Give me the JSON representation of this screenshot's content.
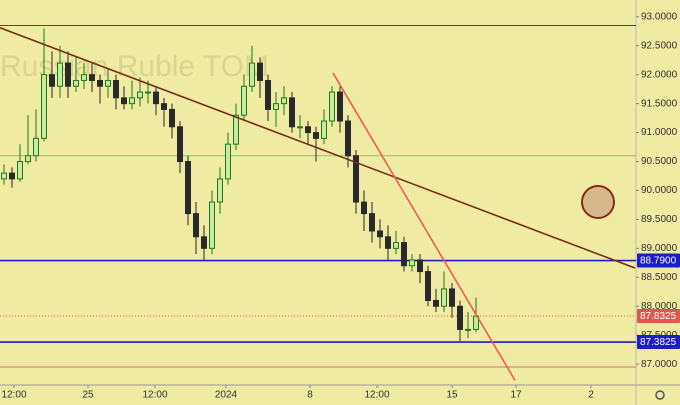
{
  "chart_data": {
    "type": "candlestick",
    "watermark": "Russian Ruble TOM",
    "x": [
      1,
      3,
      5,
      7,
      9,
      11,
      13,
      15,
      17,
      19,
      21,
      23,
      25,
      27,
      29,
      31,
      33,
      35,
      37,
      39,
      41,
      43,
      45,
      47,
      49,
      51,
      53,
      55,
      57,
      59,
      61,
      63,
      65,
      67,
      69,
      71,
      73,
      75,
      77,
      79,
      81,
      83,
      85,
      87,
      89,
      91,
      93,
      95,
      97,
      99,
      101,
      103,
      105,
      107,
      109,
      111,
      113,
      115,
      117,
      119
    ],
    "open": [
      90.2,
      90.3,
      90.2,
      90.5,
      90.6,
      90.9,
      92.0,
      91.8,
      92.2,
      91.8,
      91.9,
      92.0,
      91.9,
      91.8,
      91.9,
      91.6,
      91.5,
      91.6,
      91.7,
      91.7,
      91.5,
      91.4,
      91.1,
      90.5,
      89.6,
      89.2,
      89.0,
      89.8,
      90.2,
      90.8,
      91.3,
      91.8,
      92.2,
      91.9,
      91.4,
      91.5,
      91.6,
      91.1,
      91.1,
      91.0,
      90.9,
      91.2,
      91.7,
      91.2,
      90.6,
      89.8,
      89.6,
      89.3,
      89.2,
      89.0,
      89.1,
      88.7,
      88.8,
      88.6,
      88.1,
      88.0,
      88.3,
      88.0,
      87.6,
      87.6
    ],
    "high": [
      90.45,
      90.4,
      90.8,
      91.3,
      91.4,
      92.8,
      92.4,
      92.5,
      92.4,
      92.3,
      92.2,
      92.2,
      92.0,
      92.1,
      92.0,
      91.8,
      91.9,
      91.95,
      91.9,
      91.8,
      91.6,
      91.5,
      91.2,
      90.6,
      89.8,
      89.4,
      90.0,
      90.4,
      91.0,
      91.5,
      92.0,
      92.5,
      92.3,
      92.0,
      91.7,
      91.8,
      91.7,
      91.3,
      91.2,
      91.1,
      91.4,
      91.8,
      91.8,
      91.3,
      90.7,
      90.0,
      89.8,
      89.5,
      89.4,
      89.3,
      89.2,
      88.9,
      88.9,
      88.7,
      88.3,
      88.6,
      88.4,
      88.1,
      87.9,
      88.15
    ],
    "low": [
      90.1,
      90.05,
      90.15,
      90.45,
      90.5,
      90.85,
      91.6,
      91.6,
      91.6,
      91.7,
      91.75,
      91.7,
      91.5,
      91.6,
      91.4,
      91.4,
      91.4,
      91.45,
      91.5,
      91.3,
      91.1,
      90.9,
      90.3,
      89.4,
      88.9,
      88.8,
      88.9,
      89.6,
      90.1,
      90.7,
      91.2,
      91.7,
      91.6,
      91.2,
      91.1,
      91.3,
      91.0,
      90.9,
      90.8,
      90.5,
      90.8,
      91.1,
      91.0,
      90.4,
      89.6,
      89.3,
      89.1,
      89.0,
      88.8,
      88.9,
      88.6,
      88.6,
      88.4,
      88.0,
      87.9,
      87.9,
      87.8,
      87.4,
      87.45,
      87.55
    ],
    "close": [
      90.3,
      90.2,
      90.5,
      90.6,
      90.9,
      92.0,
      91.8,
      92.2,
      91.8,
      91.9,
      92.0,
      91.9,
      91.8,
      91.9,
      91.6,
      91.5,
      91.6,
      91.7,
      91.7,
      91.5,
      91.4,
      91.1,
      90.5,
      89.6,
      89.2,
      89.0,
      89.8,
      90.2,
      90.8,
      91.3,
      91.8,
      92.2,
      91.9,
      91.4,
      91.5,
      91.6,
      91.1,
      91.1,
      91.0,
      90.9,
      91.2,
      91.7,
      91.2,
      90.6,
      89.8,
      89.6,
      89.3,
      89.2,
      89.0,
      89.1,
      88.7,
      88.8,
      88.6,
      88.1,
      88.0,
      88.3,
      88.0,
      87.6,
      87.6,
      87.83
    ],
    "up_color": "#1e7a1e",
    "down_color": "#2a2a2a",
    "xlim": [
      0,
      159
    ],
    "ylim": [
      86.64,
      93.29
    ],
    "xticks": [
      {
        "value": 3.5,
        "label": "12:00"
      },
      {
        "value": 22,
        "label": "25"
      },
      {
        "value": 38.75,
        "label": "12:00"
      },
      {
        "value": 56.5,
        "label": "2024"
      },
      {
        "value": 77.5,
        "label": "8"
      },
      {
        "value": 94.25,
        "label": "12:00"
      },
      {
        "value": 113,
        "label": "15"
      },
      {
        "value": 129,
        "label": "17"
      },
      {
        "value": 147.75,
        "label": "2"
      }
    ],
    "yticks": [
      {
        "value": 87,
        "label": "87.0000"
      },
      {
        "value": 87.5,
        "label": "87.5000"
      },
      {
        "value": 88,
        "label": "88.0000"
      },
      {
        "value": 88.5,
        "label": "88.5000"
      },
      {
        "value": 89,
        "label": "89.0000"
      },
      {
        "value": 89.5,
        "label": "89.5000"
      },
      {
        "value": 90,
        "label": "90.0000"
      },
      {
        "value": 90.5,
        "label": "90.5000"
      },
      {
        "value": 91,
        "label": "91.0000"
      },
      {
        "value": 91.5,
        "label": "91.5000"
      },
      {
        "value": 92,
        "label": "92.0000"
      },
      {
        "value": 92.5,
        "label": "92.5000"
      },
      {
        "value": 93,
        "label": "93.0000"
      }
    ],
    "levels": [
      {
        "value": 92.85,
        "color": "#3a3ad0"
      },
      {
        "value": 90.6,
        "color": "#6fd36f"
      },
      {
        "value": 88.79,
        "label": "88.7900",
        "color": "#1c1cc8"
      },
      {
        "value": 87.8325,
        "label": "87.8325",
        "color": "#e0574c"
      },
      {
        "value": 87.3825,
        "label": "87.3825",
        "color": "#1c1cc8"
      },
      {
        "value": 86.95,
        "color": "#d07070"
      }
    ],
    "trendlines": [
      {
        "x": [
          0,
          158.75
        ],
        "y": [
          92.81,
          88.66
        ],
        "color": "#7a2c1c"
      },
      {
        "x": [
          83.25,
          128.75
        ],
        "y": [
          92.03,
          86.72
        ],
        "color": "#f05a5a"
      }
    ]
  }
}
